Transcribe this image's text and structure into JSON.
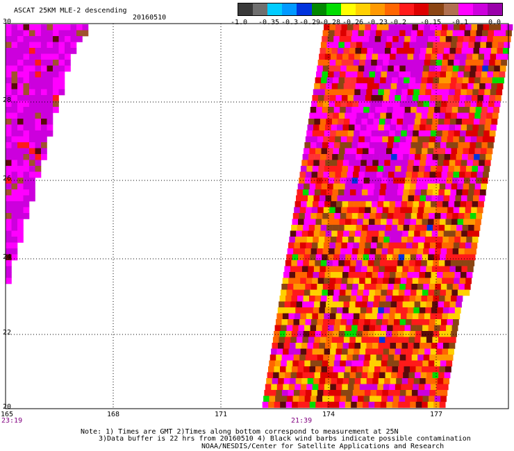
{
  "header": {
    "title": "ASCAT 25KM MLE-2 descending",
    "date": "20160510"
  },
  "colorbar": {
    "colors": [
      "#3a3a3a",
      "#6f6f6f",
      "#00ccff",
      "#0099ff",
      "#0033dd",
      "#008800",
      "#00dd00",
      "#ffff00",
      "#ffd000",
      "#ff9900",
      "#ff6600",
      "#ff1a1a",
      "#dd0000",
      "#8b4513",
      "#b07050",
      "#ff00ff",
      "#cc00dd",
      "#9900aa"
    ],
    "ticks": [
      "-1.0",
      "-0.35",
      "-0.3",
      "-0.29",
      "-0.28",
      "-0.26",
      "-0.23",
      "-0.2",
      "-0.15",
      "-0.1",
      "0.0"
    ]
  },
  "axes": {
    "lat_labels": [
      "30",
      "28",
      "26",
      "24",
      "22",
      "20"
    ],
    "lon_labels": [
      "165",
      "168",
      "171",
      "174",
      "177"
    ]
  },
  "times": {
    "left": "23:19",
    "right": "21:39"
  },
  "notes": {
    "line1": "Note: 1) Times are GMT 2)Times along bottom correspond to measurement at 25N",
    "line2": "3)Data buffer is 22 hrs from 20160510 4) Black wind barbs indicate possible contamination",
    "line3": "NOAA/NESDIS/Center for Satellite Applications and Research"
  },
  "legend_colors": {
    "magenta": "#ff00ff",
    "purple": "#cc00dd",
    "red": "#ff1a1a",
    "orange": "#ff6600",
    "yellow": "#ffd000",
    "brown": "#8b4513",
    "green": "#00dd00",
    "blue": "#0033dd"
  }
}
